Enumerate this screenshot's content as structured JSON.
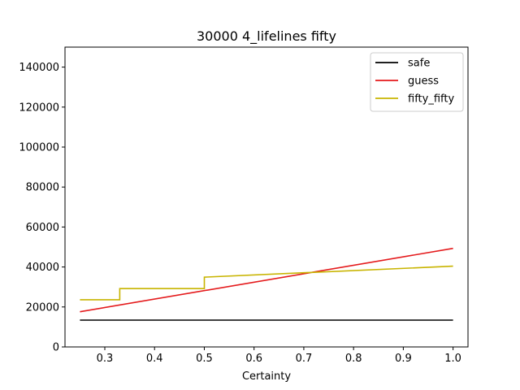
{
  "chart_data": {
    "type": "line",
    "title": "30000 4_lifelines fifty",
    "xlabel": "Certainty",
    "ylabel": "",
    "xlim": [
      0.22,
      1.03
    ],
    "ylim": [
      0,
      150000
    ],
    "xticks": [
      0.3,
      0.4,
      0.5,
      0.6,
      0.7,
      0.8,
      0.9,
      1.0
    ],
    "xtick_labels": [
      "0.3",
      "0.4",
      "0.5",
      "0.6",
      "0.7",
      "0.8",
      "0.9",
      "1.0"
    ],
    "yticks": [
      0,
      20000,
      40000,
      60000,
      80000,
      100000,
      120000,
      140000
    ],
    "ytick_labels": [
      "0",
      "20000",
      "40000",
      "60000",
      "80000",
      "100000",
      "120000",
      "140000"
    ],
    "grid": false,
    "legend_position": "top-right",
    "series": [
      {
        "name": "safe",
        "color": "#000000",
        "x": [
          0.25,
          1.0
        ],
        "y": [
          13400,
          13400
        ]
      },
      {
        "name": "guess",
        "color": "#e41a1c",
        "x": [
          0.25,
          1.0
        ],
        "y": [
          17600,
          49300
        ]
      },
      {
        "name": "fifty_fifty",
        "color": "#c8b400",
        "x": [
          0.25,
          0.33,
          0.33,
          0.5,
          0.5,
          1.0
        ],
        "y": [
          23600,
          23600,
          29200,
          29200,
          34900,
          40400
        ]
      }
    ]
  }
}
